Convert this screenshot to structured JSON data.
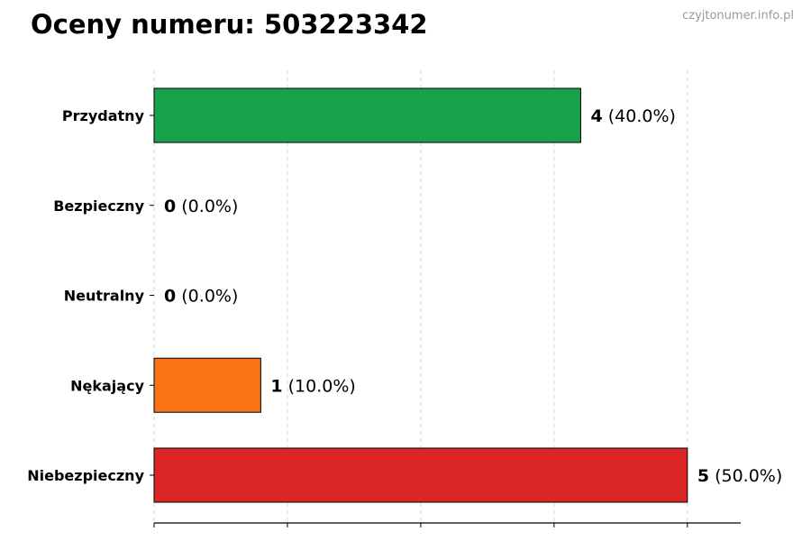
{
  "watermark": "czyjtonumer.info.pl",
  "chart_data": {
    "type": "bar",
    "orientation": "horizontal",
    "title": "Oceny numeru: 503223342",
    "categories": [
      "Przydatny",
      "Bezpieczny",
      "Neutralny",
      "Nękający",
      "Niebezpieczny"
    ],
    "values": [
      4,
      0,
      0,
      1,
      5
    ],
    "percent_labels": [
      "(40.0%)",
      "(0.0%)",
      "(0.0%)",
      "(10.0%)",
      "(50.0%)"
    ],
    "colors": [
      "#16a34a",
      "#16a34a",
      "#9ca3af",
      "#f97316",
      "#dc2626"
    ],
    "xlim": [
      0,
      5.5
    ],
    "x_ticks": [
      0,
      1.25,
      2.5,
      3.75,
      5
    ],
    "grid": "vertical dashed",
    "xlabel": "",
    "ylabel": ""
  }
}
